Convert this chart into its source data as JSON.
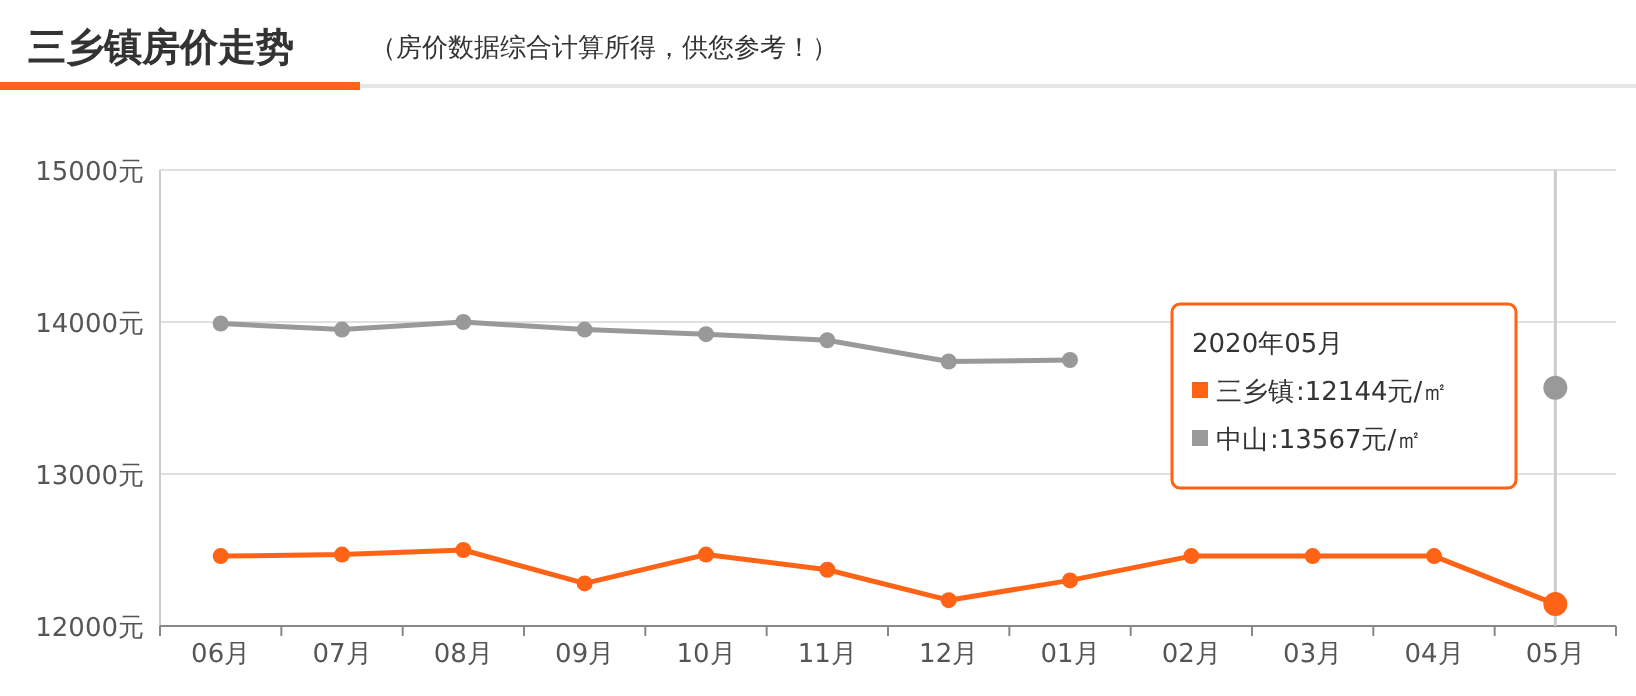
{
  "chart_data": {
    "type": "line",
    "title": "三乡镇房价走势",
    "subtitle": "（房价数据综合计算所得，供您参考！）",
    "categories": [
      "06月",
      "07月",
      "08月",
      "09月",
      "10月",
      "11月",
      "12月",
      "01月",
      "02月",
      "03月",
      "04月",
      "05月"
    ],
    "series": [
      {
        "name": "三乡镇",
        "color": "#ff6315",
        "values": [
          12460,
          12470,
          12500,
          12280,
          12470,
          12370,
          12170,
          12300,
          12460,
          12460,
          12460,
          12144
        ]
      },
      {
        "name": "中山",
        "color": "#999999",
        "values": [
          13990,
          13950,
          14000,
          13950,
          13920,
          13880,
          13740,
          13750,
          null,
          null,
          null,
          13567
        ]
      }
    ],
    "annotations": [
      "2020年05月",
      ":12144元/㎡",
      ":13567元/㎡"
    ],
    "ref_lines": [
      {
        "axis": "x",
        "value": "05月",
        "color": "#cccccc"
      }
    ],
    "ylim": [
      12000,
      15000
    ],
    "yticks": [
      {
        "value": 12000,
        "label": "12000元"
      },
      {
        "value": 13000,
        "label": "13000元"
      },
      {
        "value": 14000,
        "label": "14000元"
      },
      {
        "value": 15000,
        "label": "15000元"
      }
    ],
    "grid": "y",
    "legend": "right",
    "marker": "circle",
    "line_style": "solid"
  }
}
